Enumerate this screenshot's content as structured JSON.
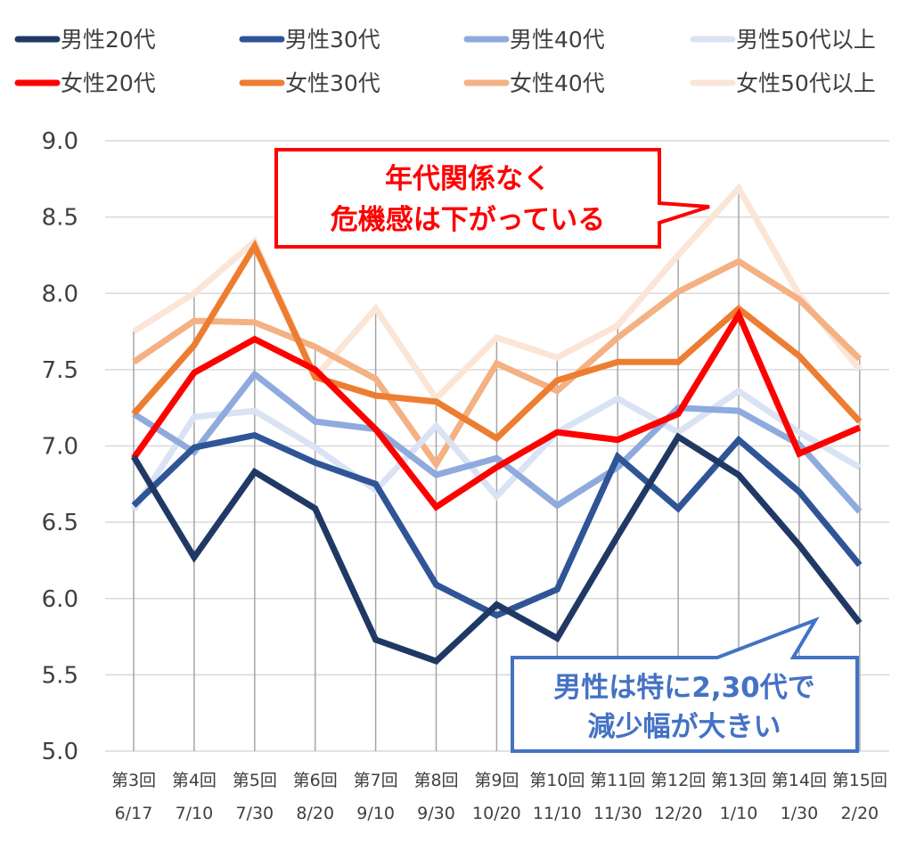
{
  "chart_data": {
    "type": "line",
    "categories": [
      [
        "第3回",
        "6/17"
      ],
      [
        "第4回",
        "7/10"
      ],
      [
        "第5回",
        "7/30"
      ],
      [
        "第6回",
        "8/20"
      ],
      [
        "第7回",
        "9/10"
      ],
      [
        "第8回",
        "9/30"
      ],
      [
        "第9回",
        "10/20"
      ],
      [
        "第10回",
        "11/10"
      ],
      [
        "第11回",
        "11/30"
      ],
      [
        "第12回",
        "12/20"
      ],
      [
        "第13回",
        "1/10"
      ],
      [
        "第14回",
        "1/30"
      ],
      [
        "第15回",
        "2/20"
      ]
    ],
    "ylim": [
      5.0,
      9.0
    ],
    "yticks": [
      "5.0",
      "5.5",
      "6.0",
      "6.5",
      "7.0",
      "7.5",
      "8.0",
      "8.5",
      "9.0"
    ],
    "legend_position": "top",
    "grid": "vertical-drop-lines",
    "series": [
      {
        "name": "男性20代",
        "color": "#203864",
        "values": [
          6.93,
          6.27,
          6.83,
          6.59,
          5.73,
          5.59,
          5.96,
          5.74,
          6.41,
          7.06,
          6.81,
          6.35,
          5.84
        ]
      },
      {
        "name": "男性30代",
        "color": "#2f5597",
        "values": [
          6.61,
          6.99,
          7.07,
          6.89,
          6.75,
          6.09,
          5.89,
          6.06,
          6.93,
          6.59,
          7.04,
          6.7,
          6.22
        ]
      },
      {
        "name": "男性40代",
        "color": "#8faadc",
        "values": [
          7.21,
          6.96,
          7.47,
          7.16,
          7.11,
          6.81,
          6.92,
          6.61,
          6.86,
          7.25,
          7.23,
          7.01,
          6.57
        ]
      },
      {
        "name": "男性50代以上",
        "color": "#dae3f3",
        "values": [
          6.58,
          7.19,
          7.23,
          6.99,
          6.71,
          7.13,
          6.67,
          7.09,
          7.31,
          7.09,
          7.36,
          7.09,
          6.86
        ]
      },
      {
        "name": "女性20代",
        "color": "#ff0000",
        "values": [
          6.92,
          7.48,
          7.7,
          7.5,
          7.11,
          6.6,
          6.86,
          7.09,
          7.04,
          7.21,
          7.86,
          6.95,
          7.12
        ]
      },
      {
        "name": "女性30代",
        "color": "#ed7d31",
        "values": [
          7.21,
          7.66,
          8.31,
          7.45,
          7.33,
          7.29,
          7.05,
          7.43,
          7.55,
          7.55,
          7.9,
          7.59,
          7.16
        ]
      },
      {
        "name": "女性40代",
        "color": "#f4b183",
        "values": [
          7.55,
          7.82,
          7.81,
          7.65,
          7.44,
          6.88,
          7.54,
          7.36,
          7.71,
          8.01,
          8.21,
          7.96,
          7.57
        ]
      },
      {
        "name": "女性50代以上",
        "color": "#fbe5d6",
        "values": [
          7.75,
          8.0,
          8.34,
          7.45,
          7.9,
          7.31,
          7.71,
          7.58,
          7.79,
          8.25,
          8.69,
          7.99,
          7.5
        ]
      }
    ],
    "annotations": [
      {
        "id": "red",
        "lines": [
          "年代関係なく",
          "危機感は下がっている"
        ],
        "color": "#ff0000"
      },
      {
        "id": "blue",
        "lines": [
          "男性は特に2,30代で",
          "減少幅が大きい"
        ],
        "color": "#4472c4"
      }
    ]
  }
}
